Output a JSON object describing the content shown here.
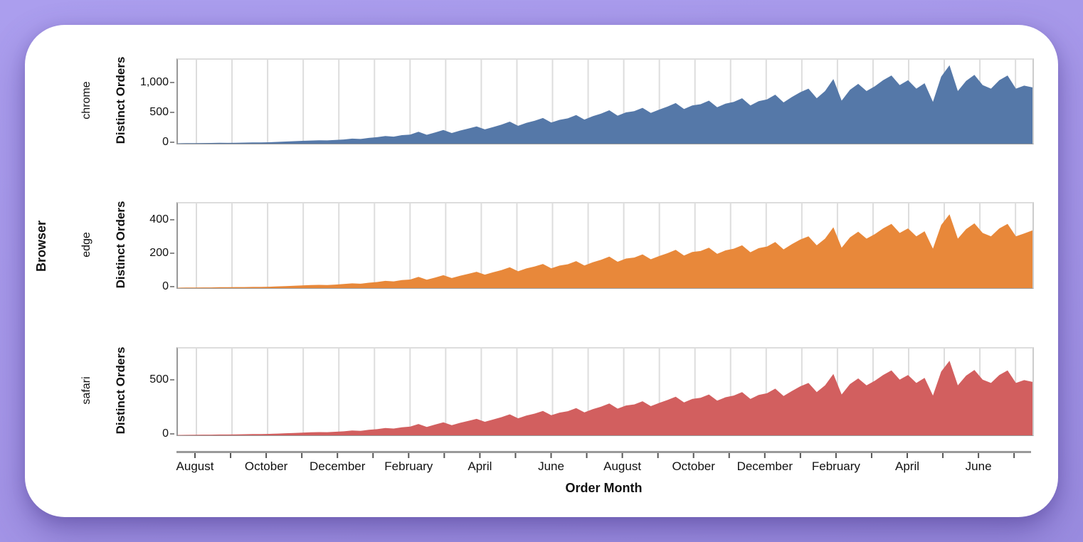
{
  "page": {
    "background": "#a596e8",
    "card_color": "#ffffff"
  },
  "chart": {
    "facet_title": "Browser",
    "x_axis_title": "Order Month",
    "y_axis_title": "Distinct Orders",
    "grid_color": "#dddddd",
    "axis_line_color": "#9a9a9a",
    "tick_color": "#555555",
    "x_tick_labels": [
      "August",
      "October",
      "December",
      "February",
      "April",
      "June",
      "August",
      "October",
      "December",
      "February",
      "April",
      "June"
    ],
    "month_tick_count": 24,
    "months_per_label": 2
  },
  "chart_data": {
    "type": "area",
    "x_unit_points": "weekly points across 24 months (August to following July, two years)",
    "facets": [
      {
        "label": "chrome",
        "color": "#5578a8",
        "ylim": [
          0,
          1400
        ],
        "yticks": [
          {
            "v": 0,
            "label": "0"
          },
          {
            "v": 500,
            "label": "500"
          },
          {
            "v": 1000,
            "label": "1,000"
          }
        ],
        "values": [
          6,
          8,
          9,
          11,
          12,
          14,
          13,
          16,
          18,
          21,
          20,
          24,
          30,
          36,
          42,
          48,
          52,
          57,
          54,
          62,
          70,
          84,
          78,
          96,
          108,
          128,
          118,
          142,
          152,
          198,
          148,
          188,
          228,
          178,
          218,
          252,
          288,
          238,
          278,
          318,
          368,
          298,
          348,
          382,
          428,
          352,
          398,
          422,
          478,
          402,
          458,
          502,
          558,
          468,
          522,
          542,
          598,
          512,
          568,
          618,
          678,
          578,
          638,
          658,
          718,
          608,
          668,
          698,
          758,
          638,
          708,
          738,
          818,
          688,
          778,
          858,
          918,
          758,
          878,
          1078,
          718,
          898,
          998,
          878,
          958,
          1058,
          1138,
          978,
          1058,
          918,
          1008,
          698,
          1118,
          1308,
          878,
          1048,
          1148,
          978,
          918,
          1058,
          1138,
          918,
          968,
          938
        ]
      },
      {
        "label": "edge",
        "color": "#e8883a",
        "ylim": [
          0,
          505
        ],
        "yticks": [
          {
            "v": 0,
            "label": "0"
          },
          {
            "v": 200,
            "label": "200"
          },
          {
            "v": 400,
            "label": "400"
          }
        ],
        "values": [
          2,
          3,
          3,
          4,
          4,
          5,
          5,
          6,
          6,
          7,
          7,
          8,
          10,
          12,
          14,
          16,
          18,
          19,
          18,
          21,
          24,
          28,
          26,
          32,
          36,
          43,
          40,
          48,
          51,
          67,
          50,
          63,
          77,
          60,
          73,
          85,
          97,
          80,
          94,
          107,
          124,
          100,
          117,
          129,
          144,
          118,
          134,
          142,
          161,
          135,
          154,
          169,
          188,
          157,
          176,
          182,
          201,
          172,
          191,
          208,
          228,
          194,
          215,
          221,
          241,
          204,
          225,
          235,
          255,
          214,
          238,
          248,
          275,
          231,
          262,
          289,
          309,
          255,
          295,
          363,
          241,
          302,
          336,
          295,
          322,
          356,
          383,
          329,
          356,
          309,
          339,
          235,
          376,
          440,
          295,
          352,
          386,
          329,
          309,
          356,
          383,
          309,
          326,
          344
        ]
      },
      {
        "label": "safari",
        "color": "#d25f5f",
        "ylim": [
          0,
          807
        ],
        "yticks": [
          {
            "v": 0,
            "label": "0"
          },
          {
            "v": 500,
            "label": "500"
          }
        ],
        "values": [
          3,
          4,
          5,
          6,
          6,
          7,
          7,
          8,
          10,
          11,
          11,
          13,
          16,
          19,
          22,
          25,
          28,
          30,
          29,
          33,
          37,
          45,
          41,
          51,
          57,
          68,
          63,
          75,
          81,
          105,
          78,
          100,
          121,
          94,
          116,
          134,
          153,
          126,
          147,
          169,
          195,
          158,
          184,
          202,
          227,
          187,
          211,
          224,
          253,
          213,
          243,
          266,
          296,
          248,
          277,
          287,
          317,
          271,
          301,
          328,
          359,
          306,
          338,
          349,
          380,
          322,
          354,
          370,
          402,
          338,
          375,
          391,
          434,
          365,
          412,
          455,
          487,
          402,
          465,
          571,
          380,
          476,
          529,
          465,
          508,
          561,
          603,
          518,
          561,
          487,
          534,
          370,
          593,
          693,
          465,
          555,
          608,
          518,
          487,
          561,
          603,
          487,
          513,
          497
        ]
      }
    ]
  }
}
